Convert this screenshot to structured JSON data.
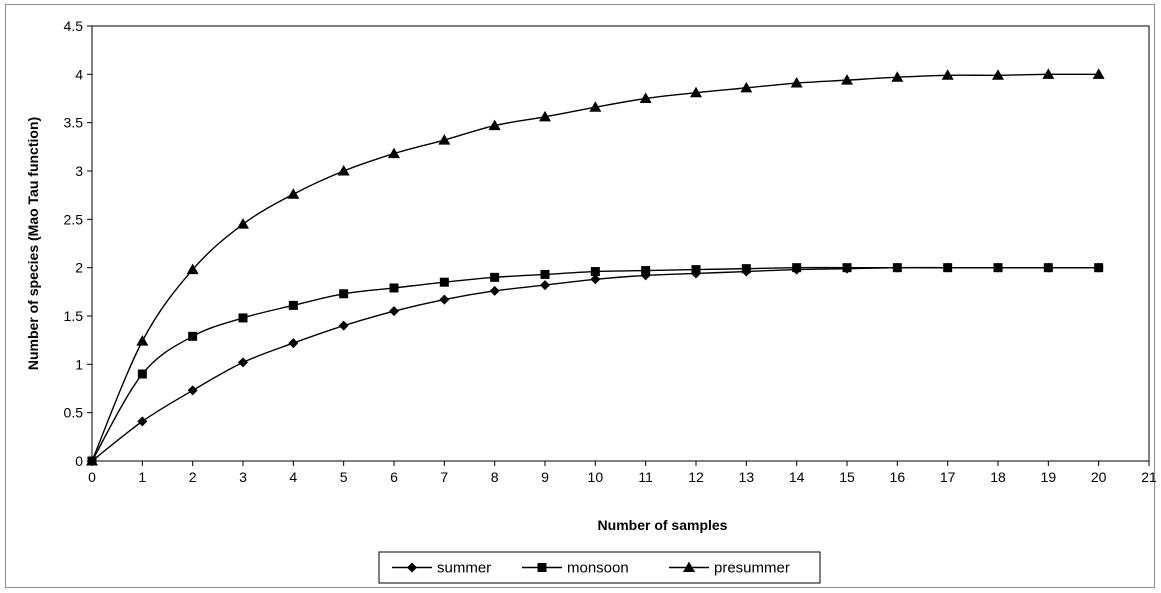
{
  "chart_data": {
    "type": "line",
    "xlabel": "Number of samples",
    "ylabel": "Number of species (Mao Tau function)",
    "xlim": [
      0,
      21
    ],
    "ylim": [
      0,
      4.5
    ],
    "xticks": [
      "0",
      "1",
      "2",
      "3",
      "4",
      "5",
      "6",
      "7",
      "8",
      "9",
      "10",
      "11",
      "12",
      "13",
      "14",
      "15",
      "16",
      "17",
      "18",
      "19",
      "20",
      "21"
    ],
    "yticks": [
      "0",
      "0.5",
      "1",
      "1.5",
      "2",
      "2.5",
      "3",
      "3.5",
      "4",
      "4.5"
    ],
    "grid": false,
    "legend_position": "bottom",
    "x": [
      0,
      1,
      2,
      3,
      4,
      5,
      6,
      7,
      8,
      9,
      10,
      11,
      12,
      13,
      14,
      15,
      16,
      17,
      18,
      19,
      20
    ],
    "series": [
      {
        "name": "summer",
        "marker": "diamond",
        "color": "#000000",
        "values": [
          0,
          0.41,
          0.73,
          1.02,
          1.22,
          1.4,
          1.55,
          1.67,
          1.76,
          1.82,
          1.88,
          1.92,
          1.94,
          1.96,
          1.98,
          1.99,
          2.0,
          2.0,
          2.0,
          2.0,
          2.0
        ]
      },
      {
        "name": "monsoon",
        "marker": "square",
        "color": "#000000",
        "values": [
          0,
          0.9,
          1.29,
          1.48,
          1.61,
          1.73,
          1.79,
          1.85,
          1.9,
          1.93,
          1.96,
          1.97,
          1.98,
          1.99,
          2.0,
          2.0,
          2.0,
          2.0,
          2.0,
          2.0,
          2.0
        ]
      },
      {
        "name": "presummer",
        "marker": "triangle",
        "color": "#000000",
        "values": [
          0,
          1.24,
          1.98,
          2.45,
          2.76,
          3.0,
          3.18,
          3.32,
          3.47,
          3.56,
          3.66,
          3.75,
          3.81,
          3.86,
          3.91,
          3.94,
          3.97,
          3.99,
          3.99,
          4.0,
          4.0
        ]
      }
    ]
  }
}
